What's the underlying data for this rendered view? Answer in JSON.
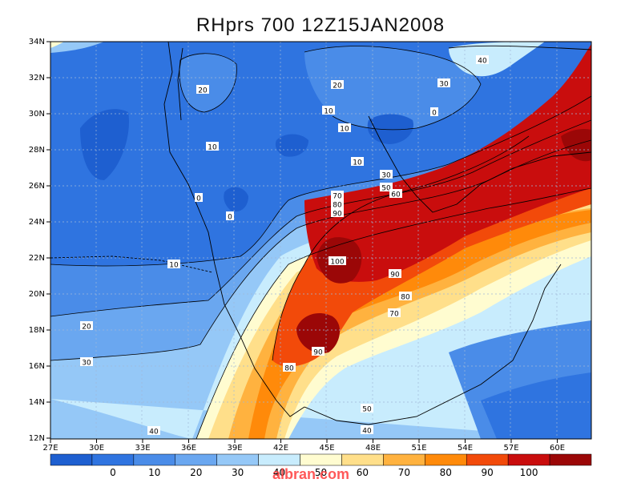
{
  "title": "RHprs 700 12Z15JAN2008",
  "lat_labels": [
    "34N",
    "32N",
    "30N",
    "28N",
    "26N",
    "24N",
    "22N",
    "20N",
    "18N",
    "16N",
    "14N",
    "12N"
  ],
  "lon_labels": [
    "27E",
    "30E",
    "33E",
    "36E",
    "39E",
    "42E",
    "45E",
    "48E",
    "51E",
    "54E",
    "57E",
    "60E"
  ],
  "colorbar": {
    "colors": [
      "#1e5fd0",
      "#2f74e0",
      "#4a8ce8",
      "#6aa7f0",
      "#95c8f7",
      "#c8ecfd",
      "#fffcd0",
      "#ffdf8a",
      "#ffb23f",
      "#ff8a0a",
      "#f24a0a",
      "#c90d0d",
      "#9b0707"
    ],
    "labels": [
      "0",
      "10",
      "20",
      "30",
      "40",
      "50",
      "60",
      "70",
      "80",
      "90",
      "100"
    ]
  },
  "contour_labels": [
    "0",
    "0",
    "0",
    "10",
    "10",
    "10",
    "10",
    "10",
    "20",
    "20",
    "20",
    "30",
    "30",
    "30",
    "40",
    "40",
    "40",
    "50",
    "50",
    "60",
    "60",
    "70",
    "70",
    "80",
    "80",
    "80",
    "90",
    "90",
    "90",
    "100"
  ],
  "watermark": "albran.com"
}
